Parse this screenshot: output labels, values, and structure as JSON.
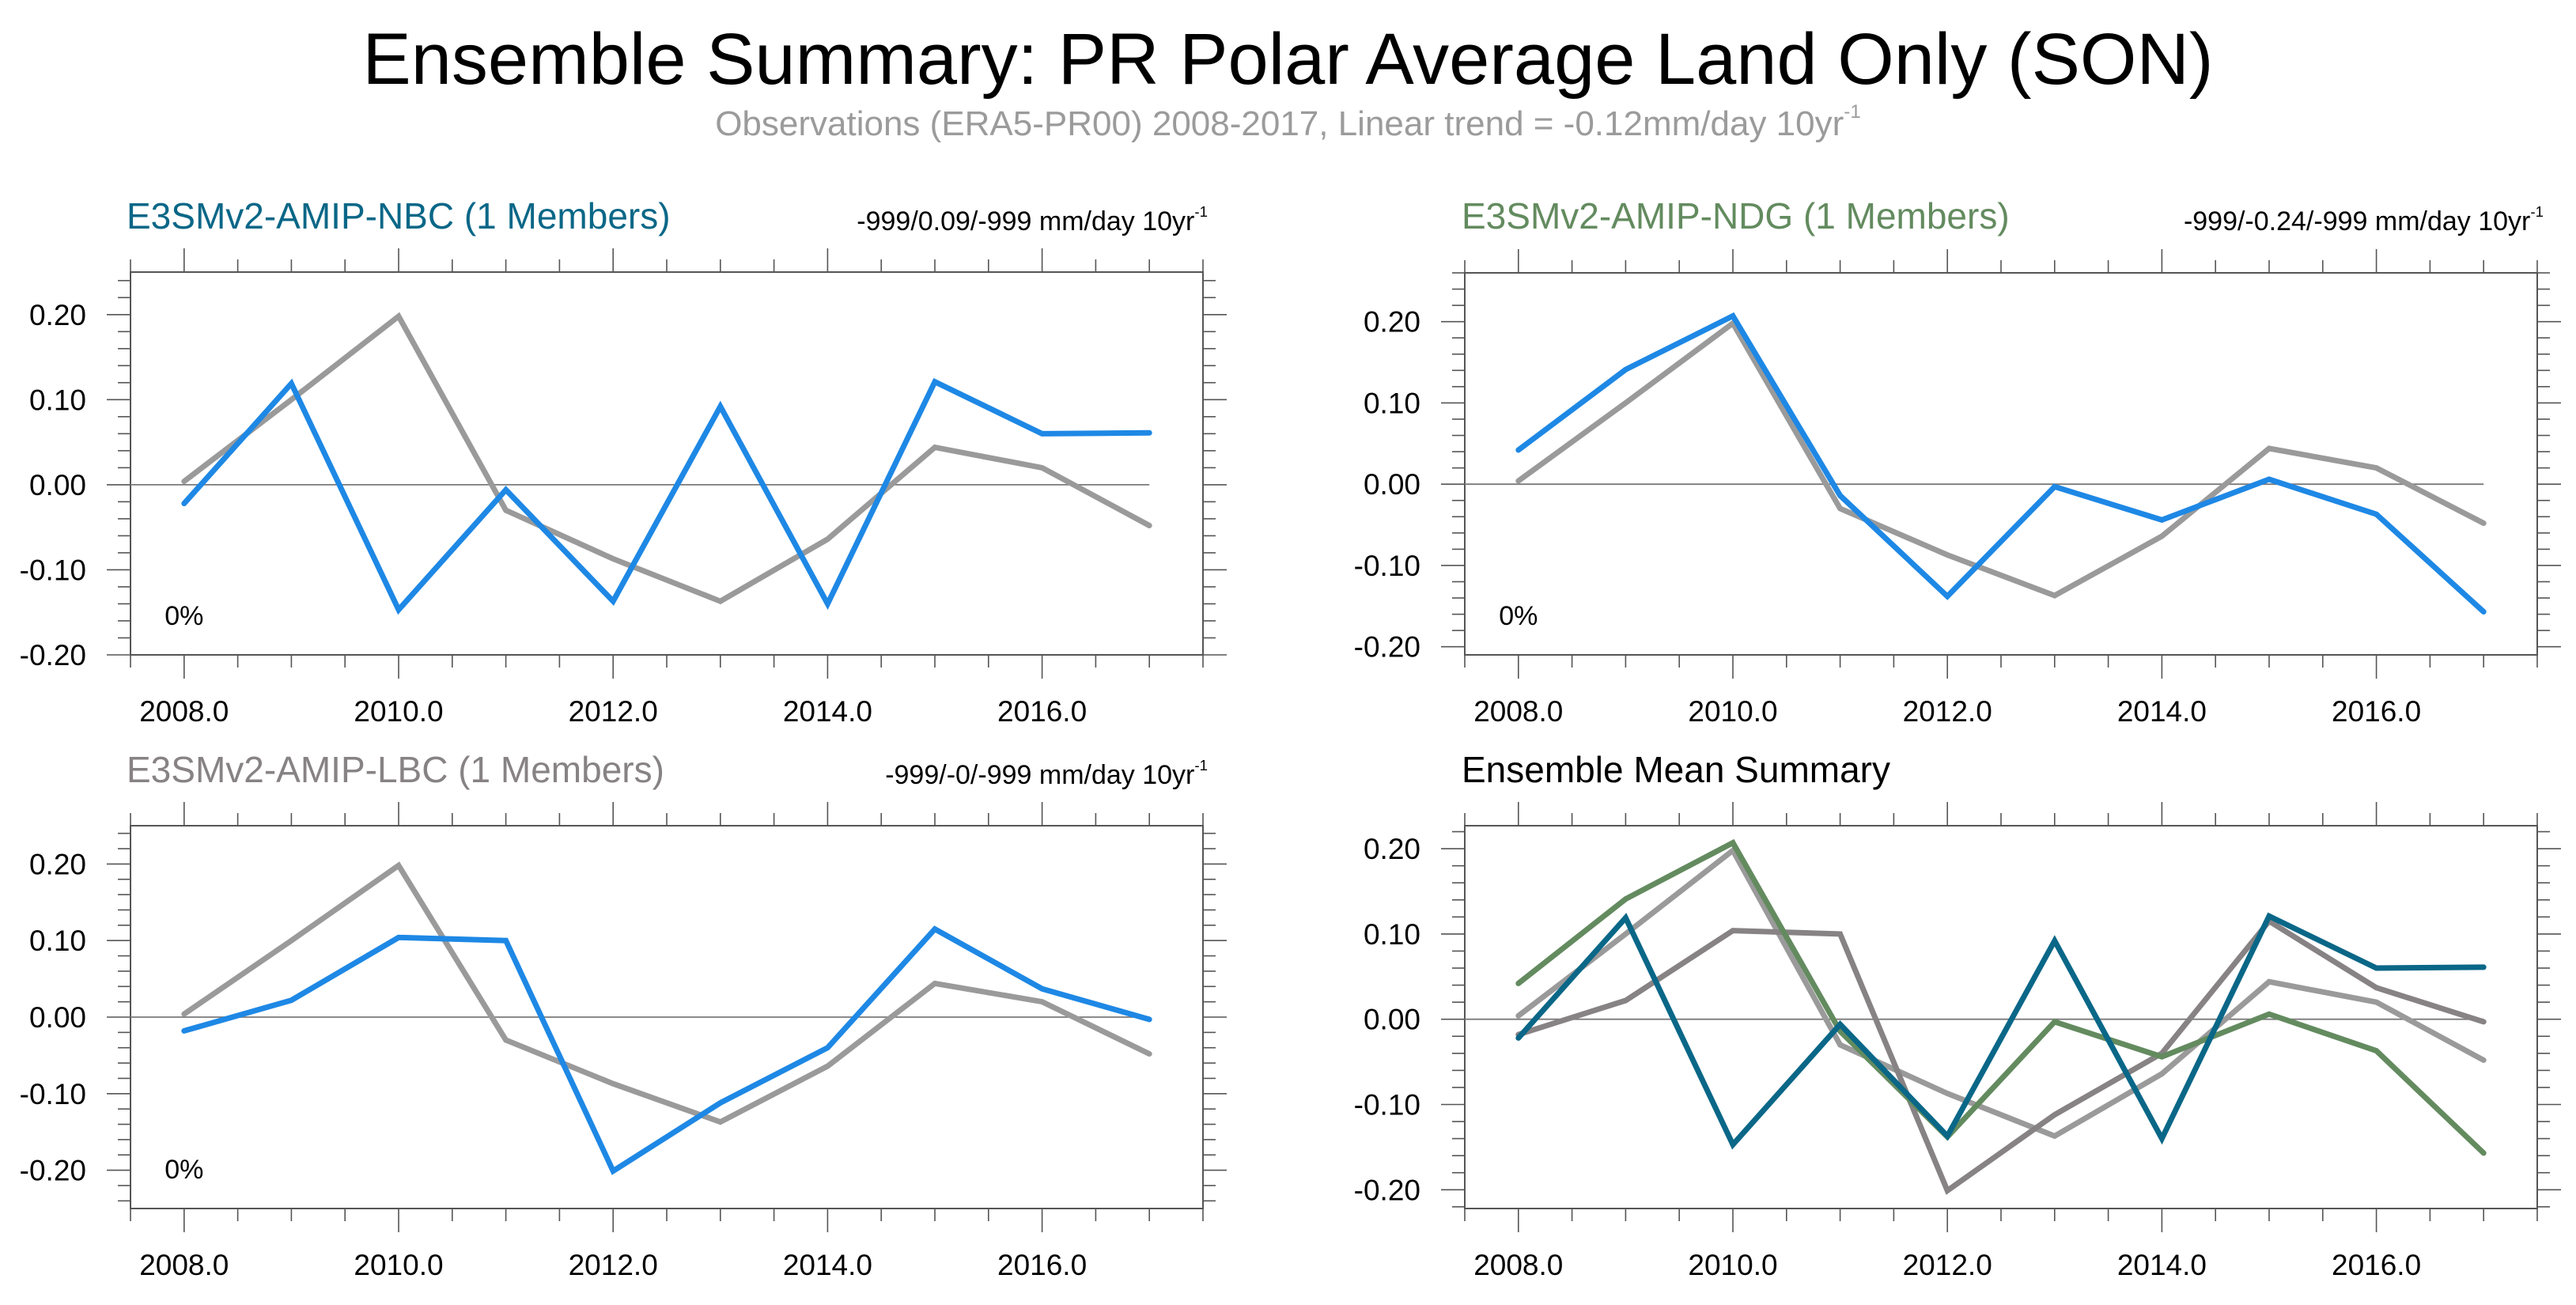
{
  "title": "Ensemble Summary: PR Polar Average Land Only (SON)",
  "subtitle": {
    "text": "Observations (ERA5-PR00) 2008-2017, Linear trend = -0.12mm/day 10yr",
    "superscript": "-1"
  },
  "colors": {
    "obs": "#9a9a9a",
    "model_single": "#1e88e5",
    "nbc": "#0a6787",
    "ndg": "#638b5f",
    "lbc": "#878283",
    "zero_line": "#7a7a7a",
    "axis": "#555555"
  },
  "chart_data": [
    {
      "type": "line",
      "id": "nbc",
      "title": "E3SMv2-AMIP-NBC (1 Members)",
      "title_color": "#0a6787",
      "trend_text": "-999/0.09/-999 mm/day 10yr",
      "trend_superscript": "-1",
      "annotation": "0%",
      "xlabel": "",
      "ylabel": "",
      "xlim": [
        2007.5,
        2017.5
      ],
      "ylim": [
        -0.2,
        0.25
      ],
      "x_tick_labels": [
        "2008.0",
        "2010.0",
        "2012.0",
        "2014.0",
        "2016.0"
      ],
      "x_ticks": [
        2008,
        2010,
        2012,
        2014,
        2016
      ],
      "y_tick_labels": [
        "-0.20",
        "-0.10",
        "0.00",
        "0.10",
        "0.20"
      ],
      "y_ticks": [
        -0.2,
        -0.1,
        0.0,
        0.1,
        0.2
      ],
      "grid": false,
      "x": [
        2008,
        2009,
        2010,
        2011,
        2012,
        2013,
        2014,
        2015,
        2016,
        2017
      ],
      "series": [
        {
          "name": "Observations (ERA5-PR00)",
          "color_key": "obs",
          "values": [
            0.004,
            0.1,
            0.198,
            -0.03,
            -0.087,
            -0.137,
            -0.064,
            0.044,
            0.02,
            -0.048
          ]
        },
        {
          "name": "E3SMv2-AMIP-NBC",
          "color_key": "model_single",
          "values": [
            -0.022,
            0.119,
            -0.147,
            -0.006,
            -0.137,
            0.092,
            -0.14,
            0.121,
            0.06,
            0.061
          ]
        }
      ]
    },
    {
      "type": "line",
      "id": "ndg",
      "title": "E3SMv2-AMIP-NDG (1 Members)",
      "title_color": "#638b5f",
      "trend_text": "-999/-0.24/-999 mm/day 10yr",
      "trend_superscript": "-1",
      "annotation": "0%",
      "xlabel": "",
      "ylabel": "",
      "xlim": [
        2007.5,
        2017.5
      ],
      "ylim": [
        -0.21,
        0.26
      ],
      "x_tick_labels": [
        "2008.0",
        "2010.0",
        "2012.0",
        "2014.0",
        "2016.0"
      ],
      "x_ticks": [
        2008,
        2010,
        2012,
        2014,
        2016
      ],
      "y_tick_labels": [
        "-0.20",
        "-0.10",
        "0.00",
        "0.10",
        "0.20"
      ],
      "y_ticks": [
        -0.2,
        -0.1,
        0.0,
        0.1,
        0.2
      ],
      "grid": false,
      "x": [
        2008,
        2009,
        2010,
        2011,
        2012,
        2013,
        2014,
        2015,
        2016,
        2017
      ],
      "series": [
        {
          "name": "Observations (ERA5-PR00)",
          "color_key": "obs",
          "values": [
            0.004,
            0.1,
            0.198,
            -0.03,
            -0.087,
            -0.137,
            -0.064,
            0.044,
            0.02,
            -0.048
          ]
        },
        {
          "name": "E3SMv2-AMIP-NDG",
          "color_key": "model_single",
          "values": [
            0.042,
            0.141,
            0.207,
            -0.014,
            -0.138,
            -0.003,
            -0.044,
            0.006,
            -0.037,
            -0.157
          ]
        }
      ]
    },
    {
      "type": "line",
      "id": "lbc",
      "title": "E3SMv2-AMIP-LBC (1 Members)",
      "title_color": "#878283",
      "trend_text": "-999/-0/-999 mm/day 10yr",
      "trend_superscript": "-1",
      "annotation": "0%",
      "xlabel": "",
      "ylabel": "",
      "xlim": [
        2007.5,
        2017.5
      ],
      "ylim": [
        -0.25,
        0.25
      ],
      "x_tick_labels": [
        "2008.0",
        "2010.0",
        "2012.0",
        "2014.0",
        "2016.0"
      ],
      "x_ticks": [
        2008,
        2010,
        2012,
        2014,
        2016
      ],
      "y_tick_labels": [
        "-0.20",
        "-0.10",
        "0.00",
        "0.10",
        "0.20"
      ],
      "y_ticks": [
        -0.2,
        -0.1,
        0.0,
        0.1,
        0.2
      ],
      "grid": false,
      "x": [
        2008,
        2009,
        2010,
        2011,
        2012,
        2013,
        2014,
        2015,
        2016,
        2017
      ],
      "series": [
        {
          "name": "Observations (ERA5-PR00)",
          "color_key": "obs",
          "values": [
            0.004,
            0.1,
            0.198,
            -0.03,
            -0.087,
            -0.137,
            -0.064,
            0.044,
            0.02,
            -0.048
          ]
        },
        {
          "name": "E3SMv2-AMIP-LBC",
          "color_key": "model_single",
          "values": [
            -0.018,
            0.022,
            0.104,
            0.1,
            -0.201,
            -0.112,
            -0.04,
            0.115,
            0.037,
            -0.003
          ]
        }
      ]
    },
    {
      "type": "line",
      "id": "ensemble",
      "title": "Ensemble Mean Summary",
      "title_color": "#000000",
      "trend_text": "",
      "trend_superscript": "",
      "annotation": "",
      "xlabel": "",
      "ylabel": "",
      "xlim": [
        2007.5,
        2017.5
      ],
      "ylim": [
        -0.222,
        0.227
      ],
      "x_tick_labels": [
        "2008.0",
        "2010.0",
        "2012.0",
        "2014.0",
        "2016.0"
      ],
      "x_ticks": [
        2008,
        2010,
        2012,
        2014,
        2016
      ],
      "y_tick_labels": [
        "-0.20",
        "-0.10",
        "0.00",
        "0.10",
        "0.20"
      ],
      "y_ticks": [
        -0.2,
        -0.1,
        0.0,
        0.1,
        0.2
      ],
      "grid": false,
      "x": [
        2008,
        2009,
        2010,
        2011,
        2012,
        2013,
        2014,
        2015,
        2016,
        2017
      ],
      "series": [
        {
          "name": "Observations (ERA5-PR00)",
          "color_key": "obs",
          "values": [
            0.004,
            0.1,
            0.198,
            -0.03,
            -0.087,
            -0.137,
            -0.064,
            0.044,
            0.02,
            -0.048
          ]
        },
        {
          "name": "E3SMv2-AMIP-LBC",
          "color_key": "lbc",
          "values": [
            -0.018,
            0.022,
            0.104,
            0.1,
            -0.201,
            -0.112,
            -0.04,
            0.115,
            0.037,
            -0.003
          ]
        },
        {
          "name": "E3SMv2-AMIP-NDG",
          "color_key": "ndg",
          "values": [
            0.042,
            0.141,
            0.207,
            -0.014,
            -0.138,
            -0.003,
            -0.044,
            0.006,
            -0.037,
            -0.157
          ]
        },
        {
          "name": "E3SMv2-AMIP-NBC",
          "color_key": "nbc",
          "values": [
            -0.022,
            0.119,
            -0.147,
            -0.006,
            -0.137,
            0.092,
            -0.14,
            0.121,
            0.06,
            0.061
          ]
        }
      ]
    }
  ]
}
